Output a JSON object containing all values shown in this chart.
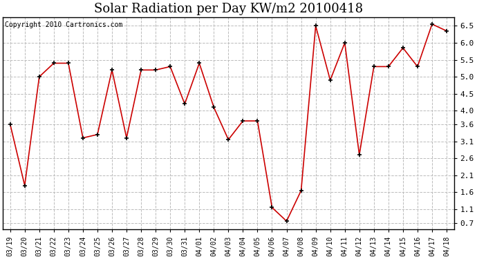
{
  "title": "Solar Radiation per Day KW/m2 20100418",
  "copyright": "Copyright 2010 Cartronics.com",
  "labels": [
    "03/19",
    "03/20",
    "03/21",
    "03/22",
    "03/23",
    "03/24",
    "03/25",
    "03/26",
    "03/27",
    "03/28",
    "03/29",
    "03/30",
    "03/31",
    "04/01",
    "04/02",
    "04/03",
    "04/04",
    "04/05",
    "04/06",
    "04/07",
    "04/08",
    "04/09",
    "04/10",
    "04/11",
    "04/12",
    "04/13",
    "04/14",
    "04/15",
    "04/16",
    "04/17",
    "04/18"
  ],
  "values": [
    3.6,
    1.8,
    5.0,
    5.4,
    5.4,
    3.2,
    3.3,
    5.2,
    3.2,
    5.2,
    5.2,
    5.3,
    4.2,
    5.4,
    4.1,
    3.15,
    3.7,
    3.7,
    1.15,
    0.75,
    1.65,
    6.5,
    4.9,
    6.0,
    2.7,
    5.3,
    5.3,
    5.85,
    5.3,
    6.55,
    6.35
  ],
  "line_color": "#cc0000",
  "marker_color": "#cc0000",
  "bg_color": "#ffffff",
  "grid_color": "#bbbbbb",
  "ylim": [
    0.5,
    6.75
  ],
  "yticks": [
    0.7,
    1.1,
    1.6,
    2.1,
    2.6,
    3.1,
    3.6,
    4.0,
    4.5,
    5.0,
    5.5,
    6.0,
    6.5
  ],
  "title_fontsize": 13,
  "copyright_fontsize": 7,
  "xtick_fontsize": 7,
  "ytick_fontsize": 8
}
